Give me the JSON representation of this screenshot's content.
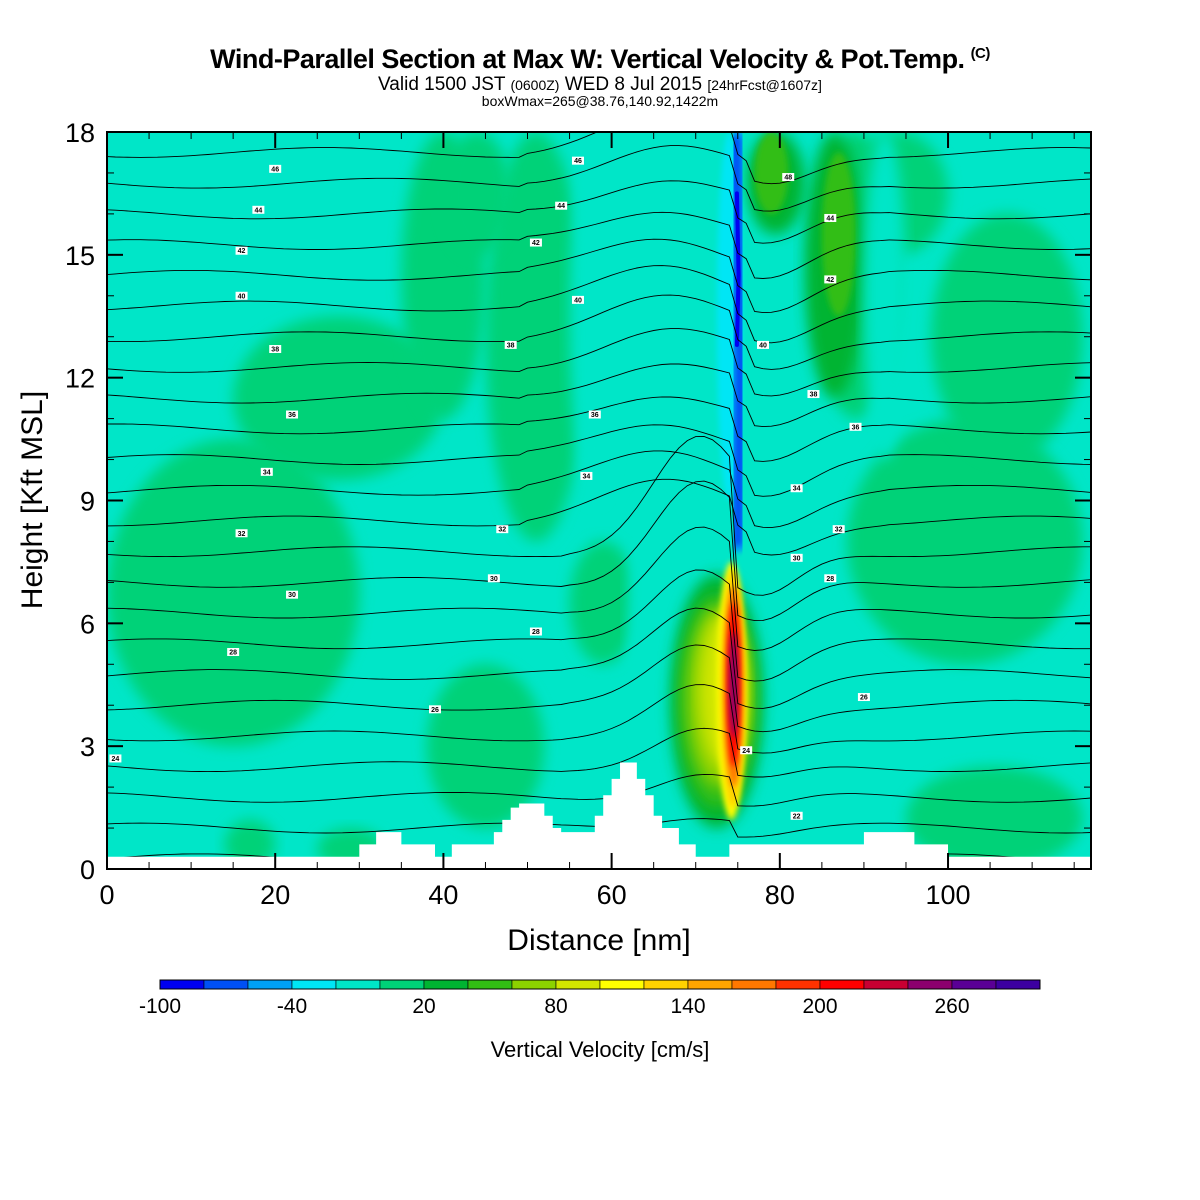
{
  "title": {
    "main": "Wind-Parallel Section at Max W: Vertical Velocity & Pot.Temp.",
    "copyright": "(C)",
    "valid_prefix": "Valid 1500 JST",
    "valid_utc": "(0600Z)",
    "valid_date": "WED 8 Jul 2015",
    "forecast": "[24hrFcst@1607z]",
    "box_info": "boxWmax=265@38.76,140.92,1422m"
  },
  "chart_data": {
    "type": "heatmap",
    "description_of_fields": "filled contours = vertical velocity (cm/s), line contours = potential temperature",
    "xlabel": "Distance [nm]",
    "ylabel": "Height [Kft MSL]",
    "xlim": [
      0,
      117
    ],
    "ylim": [
      0,
      18
    ],
    "x_ticks": [
      0,
      20,
      40,
      60,
      80,
      100
    ],
    "y_ticks": [
      0,
      3,
      6,
      9,
      12,
      15,
      18
    ],
    "x_tick_labels": [
      "0",
      "20",
      "40",
      "60",
      "80",
      "100"
    ],
    "y_tick_labels": [
      "0",
      "3",
      "6",
      "9",
      "12",
      "15",
      "18"
    ],
    "colorbar": {
      "title": "Vertical Velocity [cm/s]",
      "levels": [
        -100,
        -80,
        -60,
        -40,
        -20,
        0,
        20,
        40,
        60,
        80,
        100,
        120,
        140,
        160,
        180,
        200,
        220,
        240,
        260,
        280,
        300
      ],
      "labels": [
        "-100",
        "-40",
        "20",
        "80",
        "140",
        "200",
        "260"
      ],
      "label_values": [
        -100,
        -40,
        20,
        80,
        140,
        200,
        260
      ],
      "colors": [
        "#0000f0",
        "#0050f5",
        "#00a0f5",
        "#00e6f5",
        "#00e6c8",
        "#00d278",
        "#00b432",
        "#32be14",
        "#8cd200",
        "#d2e600",
        "#ffff00",
        "#ffd200",
        "#ffa500",
        "#ff7800",
        "#ff3200",
        "#ff0000",
        "#c80032",
        "#8c006e",
        "#5a0096",
        "#3c00a0"
      ]
    },
    "terrain": {
      "x": [
        0,
        30,
        30,
        32,
        32,
        35,
        35,
        39,
        39,
        41,
        41,
        46,
        46,
        47,
        47,
        48,
        48,
        49,
        49,
        52,
        52,
        53,
        53,
        54,
        54,
        58,
        58,
        59,
        59,
        60,
        60,
        61,
        61,
        63,
        63,
        64,
        64,
        65,
        65,
        66,
        66,
        68,
        68,
        70,
        70,
        74,
        74,
        90,
        90,
        96,
        96,
        100,
        100,
        117
      ],
      "y": [
        0.3,
        0.3,
        0.6,
        0.6,
        0.9,
        0.9,
        0.6,
        0.6,
        0.3,
        0.3,
        0.6,
        0.6,
        0.9,
        0.9,
        1.2,
        1.2,
        1.5,
        1.5,
        1.6,
        1.6,
        1.3,
        1.3,
        1.0,
        1.0,
        0.9,
        0.9,
        1.3,
        1.3,
        1.8,
        1.8,
        2.2,
        2.2,
        2.6,
        2.6,
        2.2,
        2.2,
        1.8,
        1.8,
        1.3,
        1.3,
        1.0,
        1.0,
        0.6,
        0.6,
        0.3,
        0.3,
        0.6,
        0.6,
        0.9,
        0.9,
        0.6,
        0.6,
        0.3,
        0.3
      ]
    },
    "updraft": {
      "x_center_nm": 74.5,
      "height_kft": [
        0.5,
        7.5
      ],
      "max_cm_s": 265
    },
    "downdraft": {
      "x_center_nm": 75.5,
      "height_kft": [
        8,
        17.5
      ],
      "min_cm_s": -100
    },
    "theta_contour_labels": [
      {
        "text": "24",
        "x": 1,
        "y": 2.7
      },
      {
        "text": "26",
        "x": 39,
        "y": 3.9
      },
      {
        "text": "28",
        "x": 15,
        "y": 5.3
      },
      {
        "text": "28",
        "x": 51,
        "y": 5.8
      },
      {
        "text": "30",
        "x": 22,
        "y": 6.7
      },
      {
        "text": "30",
        "x": 46,
        "y": 7.1
      },
      {
        "text": "32",
        "x": 16,
        "y": 8.2
      },
      {
        "text": "32",
        "x": 47,
        "y": 8.3
      },
      {
        "text": "34",
        "x": 19,
        "y": 9.7
      },
      {
        "text": "34",
        "x": 57,
        "y": 9.6
      },
      {
        "text": "36",
        "x": 22,
        "y": 11.1
      },
      {
        "text": "36",
        "x": 58,
        "y": 11.1
      },
      {
        "text": "38",
        "x": 20,
        "y": 12.7
      },
      {
        "text": "38",
        "x": 48,
        "y": 12.8
      },
      {
        "text": "40",
        "x": 16,
        "y": 14.0
      },
      {
        "text": "40",
        "x": 56,
        "y": 13.9
      },
      {
        "text": "42",
        "x": 16,
        "y": 15.1
      },
      {
        "text": "42",
        "x": 51,
        "y": 15.3
      },
      {
        "text": "44",
        "x": 18,
        "y": 16.1
      },
      {
        "text": "44",
        "x": 54,
        "y": 16.2
      },
      {
        "text": "46",
        "x": 20,
        "y": 17.1
      },
      {
        "text": "46",
        "x": 56,
        "y": 17.3
      },
      {
        "text": "48",
        "x": 81,
        "y": 16.9
      },
      {
        "text": "44",
        "x": 86,
        "y": 15.9
      },
      {
        "text": "42",
        "x": 86,
        "y": 14.4
      },
      {
        "text": "40",
        "x": 78,
        "y": 12.8
      },
      {
        "text": "38",
        "x": 84,
        "y": 11.6
      },
      {
        "text": "36",
        "x": 89,
        "y": 10.8
      },
      {
        "text": "34",
        "x": 82,
        "y": 9.3
      },
      {
        "text": "32",
        "x": 87,
        "y": 8.3
      },
      {
        "text": "30",
        "x": 82,
        "y": 7.6
      },
      {
        "text": "28",
        "x": 86,
        "y": 7.1
      },
      {
        "text": "26",
        "x": 90,
        "y": 4.2
      },
      {
        "text": "24",
        "x": 76,
        "y": 2.9
      },
      {
        "text": "22",
        "x": 82,
        "y": 1.3
      }
    ]
  }
}
